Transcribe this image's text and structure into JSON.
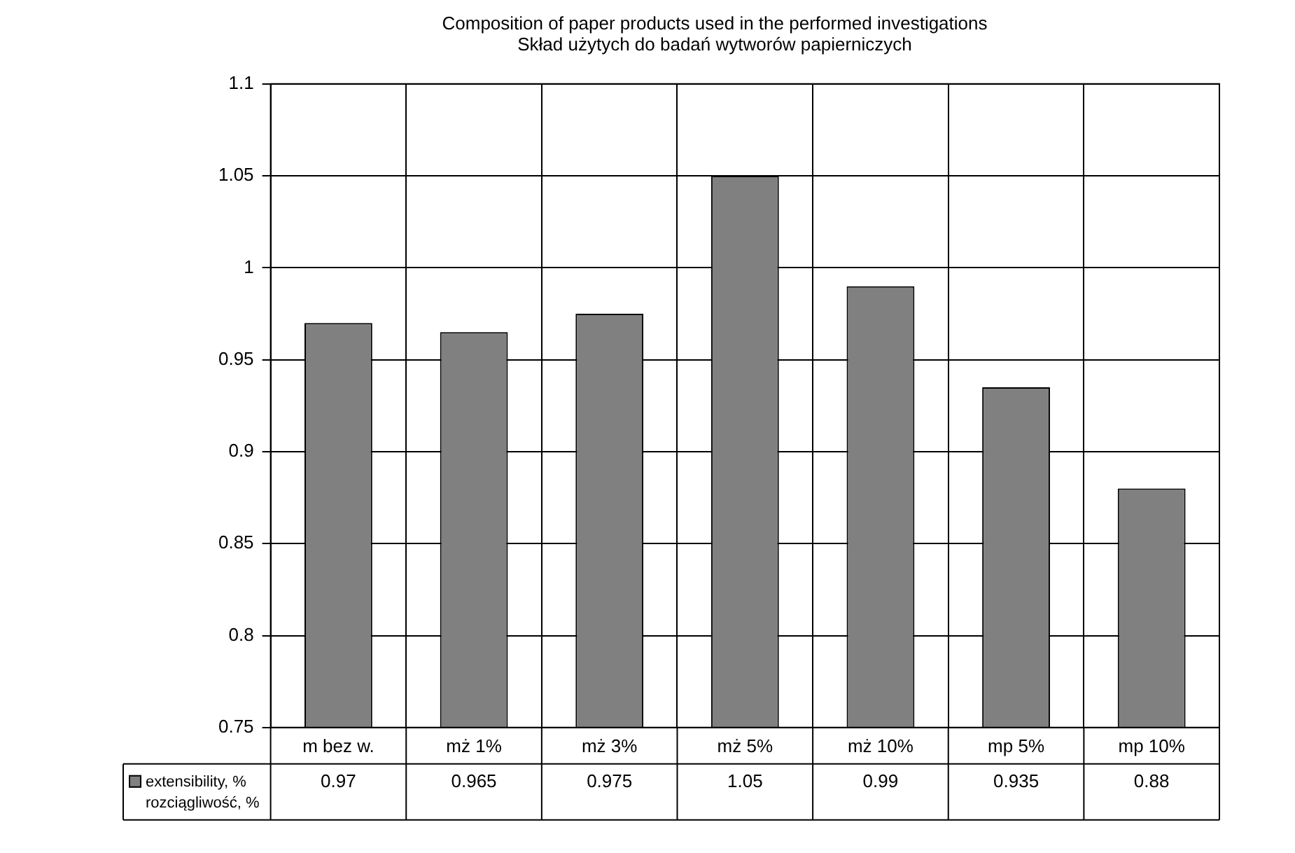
{
  "chart_data": {
    "type": "bar",
    "title": "Composition of paper products used in the performed investigations\nSkład użytych do badań wytworów papierniczych",
    "categories": [
      "m bez w.",
      "mż 1%",
      "mż 3%",
      "mż 5%",
      "mż 10%",
      "mp 5%",
      "mp 10%"
    ],
    "series": [
      {
        "name": "extensibility, %\nrozciągliwość, %",
        "color": "#808080",
        "values": [
          0.97,
          0.965,
          0.975,
          1.05,
          0.99,
          0.935,
          0.88
        ]
      }
    ],
    "ylim": [
      0.75,
      1.1
    ],
    "yticks": [
      0.75,
      0.8,
      0.85,
      0.9,
      0.95,
      1,
      1.05,
      1.1
    ],
    "grid": true,
    "data_labels": true,
    "legend": "bottom left"
  }
}
